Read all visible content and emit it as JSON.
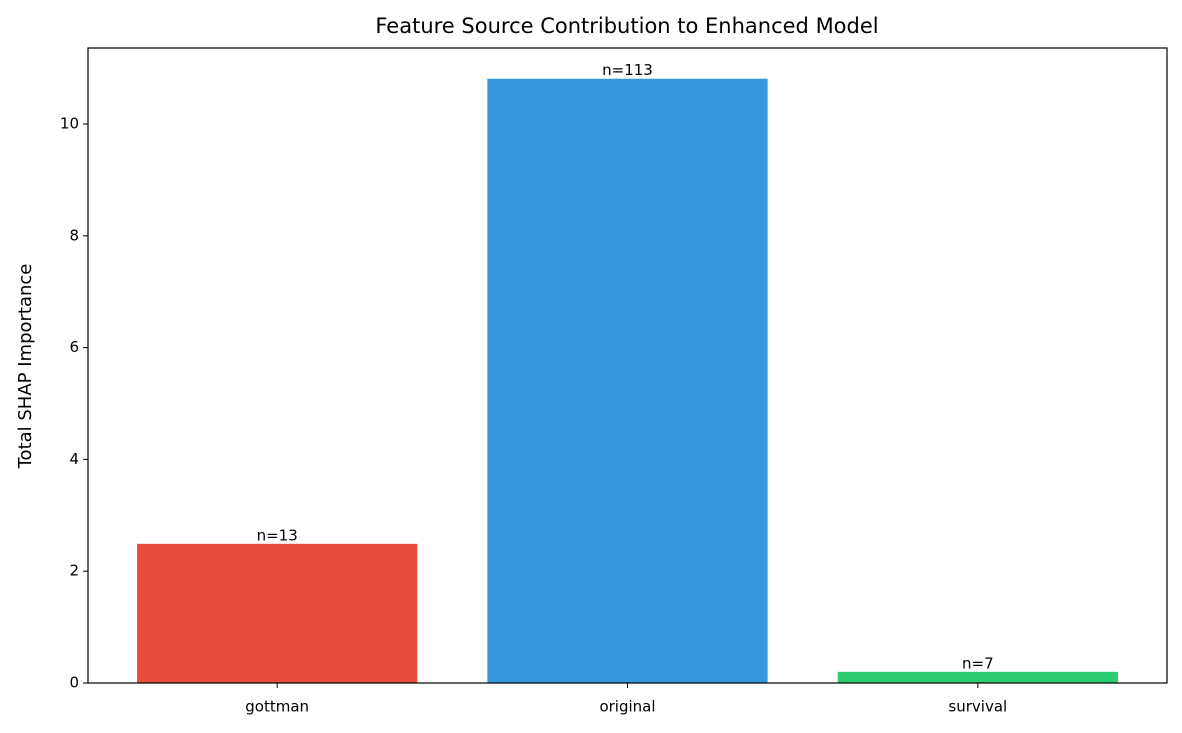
{
  "chart_data": {
    "type": "bar",
    "title": "Feature Source Contribution to Enhanced Model",
    "y_label": "Total SHAP Importance",
    "categories": [
      "gottman",
      "original",
      "survival"
    ],
    "values": [
      2.49,
      10.81,
      0.2
    ],
    "annotations": [
      "n=13",
      "n=113",
      "n=7"
    ],
    "colors": [
      "#e74c3c",
      "#3498db",
      "#2ecc71"
    ],
    "ylim": [
      0,
      11.36
    ],
    "yticks": [
      0,
      2,
      4,
      6,
      8,
      10
    ],
    "grid": false
  }
}
